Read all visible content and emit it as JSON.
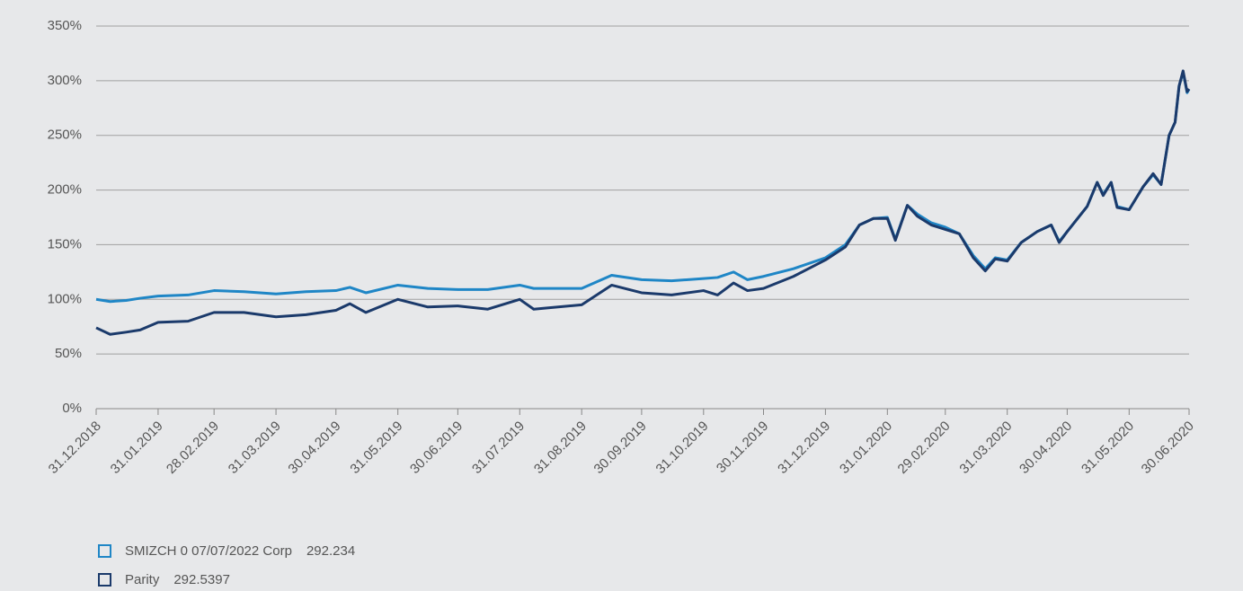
{
  "chart_data": {
    "type": "line",
    "x": [
      "31.12.2018",
      "07.01.2019",
      "15.01.2019",
      "22.01.2019",
      "31.01.2019",
      "15.02.2019",
      "28.02.2019",
      "15.03.2019",
      "31.03.2019",
      "15.04.2019",
      "30.04.2019",
      "07.05.2019",
      "15.05.2019",
      "31.05.2019",
      "15.06.2019",
      "30.06.2019",
      "15.07.2019",
      "31.07.2019",
      "07.08.2019",
      "31.08.2019",
      "15.09.2019",
      "30.09.2019",
      "15.10.2019",
      "31.10.2019",
      "07.11.2019",
      "15.11.2019",
      "22.11.2019",
      "30.11.2019",
      "15.12.2019",
      "31.12.2019",
      "10.01.2020",
      "17.01.2020",
      "24.01.2020",
      "31.01.2020",
      "04.02.2020",
      "10.02.2020",
      "15.02.2020",
      "22.02.2020",
      "29.02.2020",
      "07.03.2020",
      "14.03.2020",
      "20.03.2020",
      "25.03.2020",
      "31.03.2020",
      "07.04.2020",
      "15.04.2020",
      "22.04.2020",
      "26.04.2020",
      "30.04.2020",
      "10.05.2020",
      "15.05.2020",
      "18.05.2020",
      "22.05.2020",
      "25.05.2020",
      "31.05.2020",
      "07.06.2020",
      "12.06.2020",
      "16.06.2020",
      "20.06.2020",
      "23.06.2020",
      "25.06.2020",
      "27.06.2020",
      "29.06.2020",
      "30.06.2020"
    ],
    "series": [
      {
        "name": "SMIZCH 0 07/07/2022 Corp",
        "last_value": 292.234,
        "color": "#1f86c6",
        "values": [
          100,
          98,
          99,
          101,
          103,
          104,
          108,
          107,
          105,
          107,
          108,
          111,
          106,
          113,
          110,
          109,
          109,
          113,
          110,
          110,
          122,
          118,
          117,
          119,
          120,
          125,
          118,
          121,
          128,
          138,
          150,
          168,
          174,
          175,
          155,
          186,
          178,
          170,
          166,
          160,
          140,
          128,
          138,
          136,
          152,
          162,
          168,
          153,
          162,
          185,
          207,
          196,
          207,
          185,
          182,
          203,
          214,
          205,
          250,
          262,
          295,
          308,
          289,
          292.234
        ]
      },
      {
        "name": "Parity",
        "last_value": 292.5397,
        "color": "#1b3a6b",
        "values": [
          74,
          68,
          70,
          72,
          79,
          80,
          88,
          88,
          84,
          86,
          90,
          96,
          88,
          100,
          93,
          94,
          91,
          100,
          91,
          95,
          113,
          106,
          104,
          108,
          104,
          115,
          108,
          110,
          121,
          136,
          148,
          168,
          174,
          174,
          154,
          186,
          176,
          168,
          164,
          160,
          138,
          126,
          137,
          135,
          152,
          162,
          168,
          152,
          162,
          185,
          207,
          195,
          207,
          184,
          182,
          203,
          215,
          205,
          250,
          262,
          295,
          309,
          290,
          292.5397
        ]
      }
    ],
    "xlim": [
      "31.12.2018",
      "30.06.2020"
    ],
    "xticks": [
      "31.12.2018",
      "31.01.2019",
      "28.02.2019",
      "31.03.2019",
      "30.04.2019",
      "31.05.2019",
      "30.06.2019",
      "31.07.2019",
      "31.08.2019",
      "30.09.2019",
      "31.10.2019",
      "30.11.2019",
      "31.12.2019",
      "31.01.2020",
      "29.02.2020",
      "31.03.2020",
      "30.04.2020",
      "31.05.2020",
      "30.06.2020"
    ],
    "ylim": [
      0,
      350
    ],
    "yticks": [
      {
        "value": 0,
        "label": "0%"
      },
      {
        "value": 50,
        "label": "50%"
      },
      {
        "value": 100,
        "label": "100%"
      },
      {
        "value": 150,
        "label": "150%"
      },
      {
        "value": 200,
        "label": "200%"
      },
      {
        "value": 250,
        "label": "250%"
      },
      {
        "value": 300,
        "label": "300%"
      },
      {
        "value": 350,
        "label": "350%"
      }
    ],
    "grid": true
  }
}
